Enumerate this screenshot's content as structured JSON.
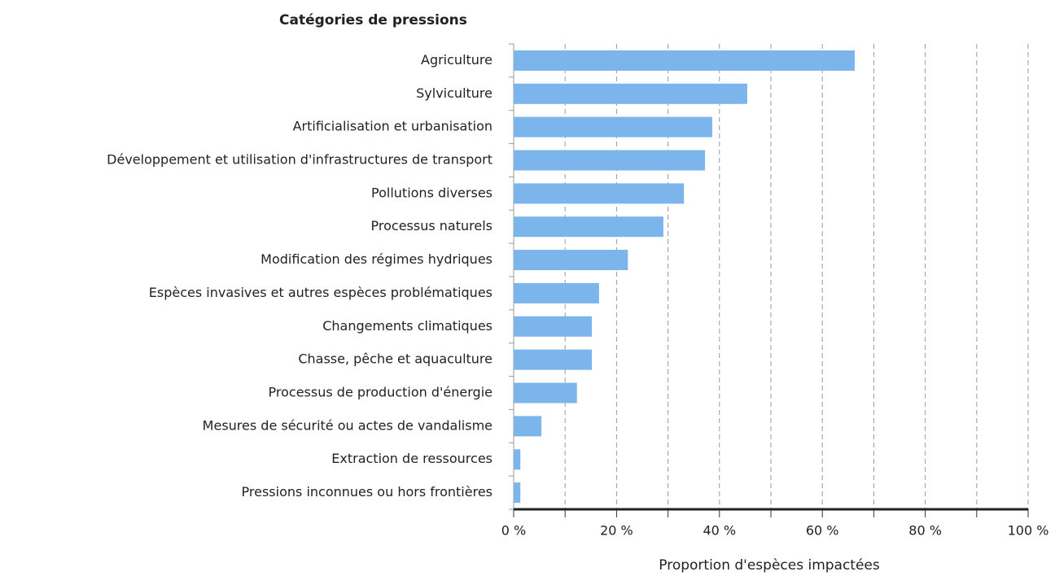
{
  "chart_data": {
    "type": "barh",
    "title": "Catégories de pressions",
    "xlabel": "Proportion d'espèces impactées",
    "categories": [
      "Agriculture",
      "Sylviculture",
      "Artificialisation et urbanisation",
      "Développement et utilisation d'infrastructures de transport",
      "Pollutions diverses",
      "Processus naturels",
      "Modification des régimes hydriques",
      "Espèces invasives et autres espèces problématiques",
      "Changements climatiques",
      "Chasse, pêche et aquaculture",
      "Processus de production d'énergie",
      "Mesures de sécurité ou actes de vandalisme",
      "Extraction de ressources",
      "Pressions inconnues ou hors frontières"
    ],
    "values": [
      66.3,
      45.4,
      38.6,
      37.2,
      33.1,
      29.1,
      22.2,
      16.6,
      15.2,
      15.2,
      12.3,
      5.4,
      1.3,
      1.3
    ],
    "color": "#7cb5ec",
    "xlim": [
      0,
      100
    ],
    "xticks": [
      {
        "value": 0,
        "label": "0 %"
      },
      {
        "value": 20,
        "label": "20 %"
      },
      {
        "value": 40,
        "label": "40 %"
      },
      {
        "value": 60,
        "label": "60 %"
      },
      {
        "value": 80,
        "label": "80 %"
      },
      {
        "value": 100,
        "label": "100 %"
      }
    ],
    "minor_xticks": [
      10,
      30,
      50,
      70,
      90
    ],
    "grid": true
  }
}
